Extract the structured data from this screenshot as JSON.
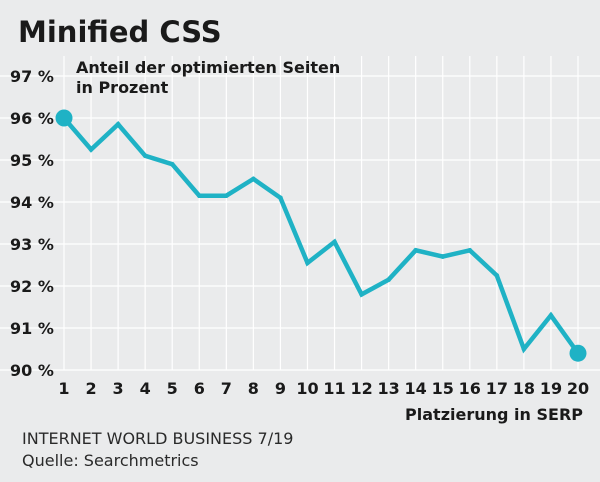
{
  "chart_data": {
    "type": "line",
    "title": "Minified CSS",
    "ylabel_lines": [
      "Anteil der optimierten Seiten",
      "in Prozent"
    ],
    "xlabel": "Platzierung in SERP",
    "x": [
      1,
      2,
      3,
      4,
      5,
      6,
      7,
      8,
      9,
      10,
      11,
      12,
      13,
      14,
      15,
      16,
      17,
      18,
      19,
      20
    ],
    "series": [
      {
        "values": [
          96.0,
          95.25,
          95.85,
          95.1,
          94.9,
          94.15,
          94.15,
          94.55,
          94.1,
          92.55,
          93.05,
          91.8,
          92.15,
          92.85,
          92.7,
          92.85,
          92.25,
          90.5,
          91.3,
          90.4
        ],
        "color": "#1fb2c5"
      }
    ],
    "ylim": [
      90,
      97
    ],
    "yticks": [
      90,
      91,
      92,
      93,
      94,
      95,
      96,
      97
    ],
    "ytick_labels": [
      "90 %",
      "91 %",
      "92 %",
      "93 %",
      "94 %",
      "95 %",
      "96 %",
      "97 %"
    ],
    "xtick_labels": [
      "1",
      "2",
      "3",
      "4",
      "5",
      "6",
      "7",
      "8",
      "9",
      "10",
      "11",
      "12",
      "13",
      "14",
      "15",
      "16",
      "17",
      "18",
      "19",
      "20"
    ],
    "grid": true,
    "endpoint_markers": true,
    "source_lines": [
      "INTERNET WORLD BUSINESS 7/19",
      "Quelle: Searchmetrics"
    ],
    "colors": {
      "background": "#eaebec",
      "line": "#1fb2c5",
      "grid": "#ffffff",
      "text": "#1a1a1a"
    }
  }
}
